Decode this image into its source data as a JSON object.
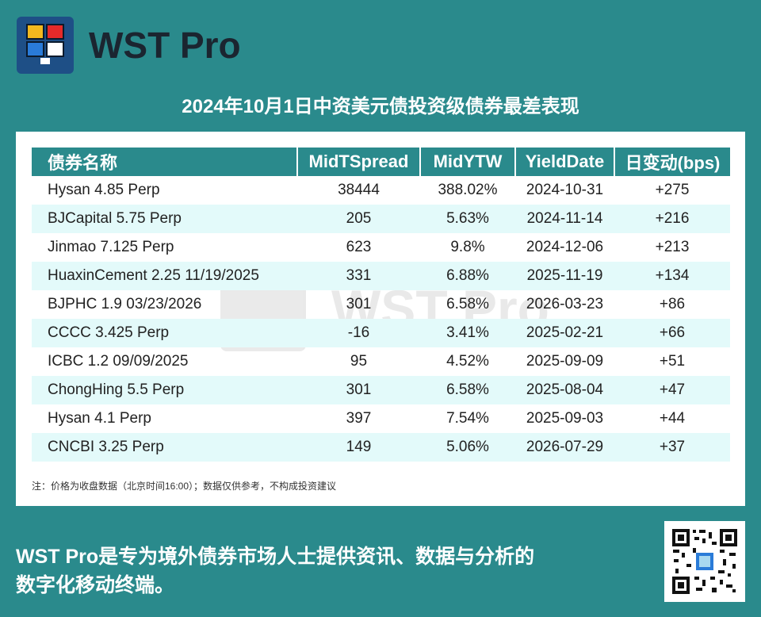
{
  "brand": {
    "name": "WST Pro",
    "logo_icon": "wst-logo-icon"
  },
  "title": "2024年10月1日中资美元债投资级债券最差表现",
  "table": {
    "headers": [
      "债券名称",
      "MidTSpread",
      "MidYTW",
      "YieldDate",
      "日变动(bps)"
    ],
    "rows": [
      [
        "Hysan 4.85 Perp",
        "38444",
        "388.02%",
        "2024-10-31",
        "+275"
      ],
      [
        "BJCapital 5.75 Perp",
        "205",
        "5.63%",
        "2024-11-14",
        "+216"
      ],
      [
        "Jinmao 7.125 Perp",
        "623",
        "9.8%",
        "2024-12-06",
        "+213"
      ],
      [
        "HuaxinCement 2.25 11/19/2025",
        "331",
        "6.88%",
        "2025-11-19",
        "+134"
      ],
      [
        "BJPHC 1.9 03/23/2026",
        "301",
        "6.58%",
        "2026-03-23",
        "+86"
      ],
      [
        "CCCC 3.425 Perp",
        "-16",
        "3.41%",
        "2025-02-21",
        "+66"
      ],
      [
        "ICBC 1.2 09/09/2025",
        "95",
        "4.52%",
        "2025-09-09",
        "+51"
      ],
      [
        "ChongHing 5.5 Perp",
        "301",
        "6.58%",
        "2025-08-04",
        "+47"
      ],
      [
        "Hysan 4.1 Perp",
        "397",
        "7.54%",
        "2025-09-03",
        "+44"
      ],
      [
        "CNCBI 3.25 Perp",
        "149",
        "5.06%",
        "2026-07-29",
        "+37"
      ]
    ]
  },
  "watermark": "WST Pro",
  "note": "注：价格为收盘数据（北京时间16:00）；数据仅供参考，不构成投资建议",
  "footer": {
    "line1": "WST Pro是专为境外债券市场人士提供资讯、数据与分析的",
    "line2": "数字化移动终端。"
  },
  "qr_icon": "qr-code-icon",
  "colors": {
    "teal": "#2a8a8c",
    "row_alt": "#e3fafa",
    "logo_bg": "#1e4f86"
  }
}
